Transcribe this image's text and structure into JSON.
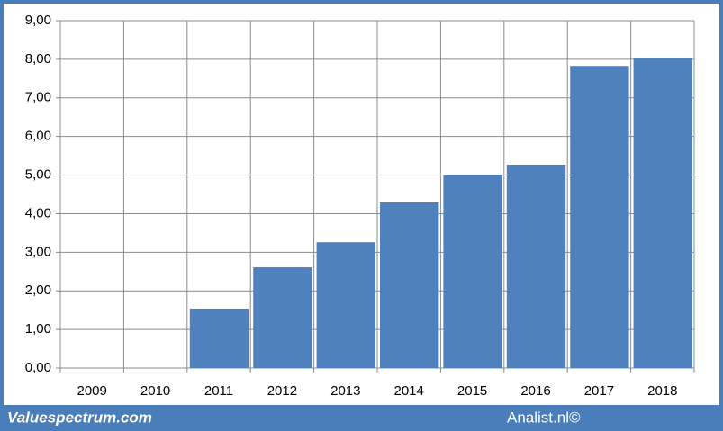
{
  "chart_data": {
    "type": "bar",
    "categories": [
      "2009",
      "2010",
      "2011",
      "2012",
      "2013",
      "2014",
      "2015",
      "2016",
      "2017",
      "2018"
    ],
    "values": [
      null,
      null,
      1.54,
      2.61,
      3.26,
      4.29,
      5.01,
      5.27,
      7.83,
      8.04
    ],
    "color": "#4f81bd",
    "ylim": [
      0,
      9
    ],
    "yticks": [
      {
        "value": 0,
        "label": "0,00"
      },
      {
        "value": 1,
        "label": "1,00"
      },
      {
        "value": 2,
        "label": "2,00"
      },
      {
        "value": 3,
        "label": "3,00"
      },
      {
        "value": 4,
        "label": "4,00"
      },
      {
        "value": 5,
        "label": "5,00"
      },
      {
        "value": 6,
        "label": "6,00"
      },
      {
        "value": 7,
        "label": "7,00"
      },
      {
        "value": 8,
        "label": "8,00"
      },
      {
        "value": 9,
        "label": "9,00"
      }
    ],
    "grid": true
  },
  "footer": {
    "left": "Valuespectrum.com",
    "right": "Analist.nl©"
  }
}
